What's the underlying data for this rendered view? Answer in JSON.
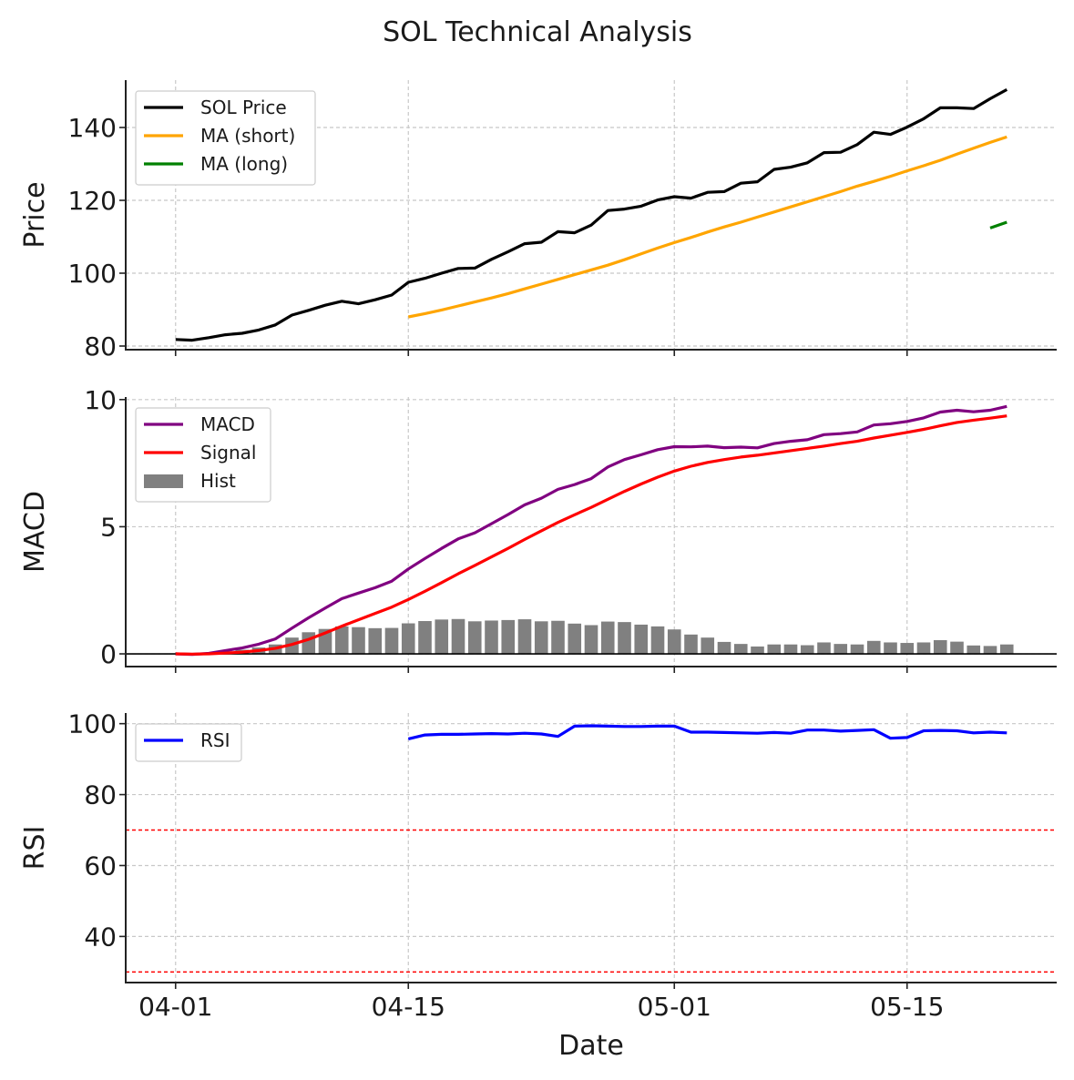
{
  "figure": {
    "title": "SOL Technical Analysis",
    "xlabel": "Date",
    "x_tick_labels": [
      "04-01",
      "04-15",
      "05-01",
      "05-15"
    ],
    "x_tick_days": [
      0,
      14,
      30,
      44
    ],
    "x_range": [
      -3,
      53
    ]
  },
  "colors": {
    "price": "#000000",
    "ma_short": "#FFA500",
    "ma_long": "#008000",
    "macd": "#800080",
    "signal": "#FF0000",
    "hist": "#808080",
    "rsi": "#0000FF",
    "threshold": "#FF0000"
  },
  "chart_data": [
    {
      "type": "line",
      "ylabel": "Price",
      "ylim": [
        79,
        153
      ],
      "yticks": [
        80,
        100,
        120,
        140
      ],
      "legend": [
        "SOL Price",
        "MA (short)",
        "MA (long)"
      ],
      "x_days": [
        0,
        1,
        2,
        3,
        4,
        5,
        6,
        7,
        8,
        9,
        10,
        11,
        12,
        13,
        14,
        15,
        16,
        17,
        18,
        19,
        20,
        21,
        22,
        23,
        24,
        25,
        26,
        27,
        28,
        29,
        30,
        31,
        32,
        33,
        34,
        35,
        36,
        37,
        38,
        39,
        40,
        41,
        42,
        43,
        44,
        45,
        46,
        47,
        48,
        49,
        50
      ],
      "series": [
        {
          "name": "SOL Price",
          "start_day": 0,
          "values": [
            81.8,
            81.6,
            82.3,
            83.1,
            83.5,
            84.4,
            85.8,
            88.5,
            89.8,
            91.2,
            92.3,
            91.6,
            92.7,
            94.0,
            97.5,
            98.6,
            100.0,
            101.3,
            101.4,
            103.8,
            105.9,
            108.1,
            108.5,
            111.4,
            111.1,
            113.2,
            117.2,
            117.6,
            118.4,
            120.1,
            121.0,
            120.6,
            122.2,
            122.4,
            124.7,
            125.1,
            128.5,
            129.1,
            130.3,
            133.1,
            133.2,
            135.3,
            138.7,
            138.1,
            140.1,
            142.4,
            145.4,
            145.4,
            145.2,
            147.9,
            150.4
          ]
        },
        {
          "name": "MA (short)",
          "start_day": 14,
          "values": [
            88.0,
            88.9,
            89.9,
            91.0,
            92.1,
            93.2,
            94.4,
            95.7,
            97.0,
            98.3,
            99.6,
            100.9,
            102.2,
            103.7,
            105.3,
            106.9,
            108.4,
            109.8,
            111.3,
            112.7,
            114.0,
            115.4,
            116.8,
            118.2,
            119.6,
            121.0,
            122.4,
            123.9,
            125.2,
            126.6,
            128.1,
            129.5,
            131.0,
            132.7,
            134.3,
            135.9,
            137.4
          ]
        },
        {
          "name": "MA (long)",
          "start_day": 49,
          "values": [
            112.4,
            114.0
          ]
        }
      ]
    },
    {
      "type": "line+bar",
      "ylabel": "MACD",
      "ylim": [
        -0.5,
        10.1
      ],
      "yticks": [
        0,
        5,
        10
      ],
      "legend": [
        "MACD",
        "Signal",
        "Hist"
      ],
      "x_days": [
        0,
        1,
        2,
        3,
        4,
        5,
        6,
        7,
        8,
        9,
        10,
        11,
        12,
        13,
        14,
        15,
        16,
        17,
        18,
        19,
        20,
        21,
        22,
        23,
        24,
        25,
        26,
        27,
        28,
        29,
        30,
        31,
        32,
        33,
        34,
        35,
        36,
        37,
        38,
        39,
        40,
        41,
        42,
        43,
        44,
        45,
        46,
        47,
        48,
        49,
        50
      ],
      "series": [
        {
          "name": "MACD",
          "values": [
            0.0,
            -0.02,
            0.02,
            0.13,
            0.23,
            0.38,
            0.59,
            1.01,
            1.42,
            1.8,
            2.17,
            2.39,
            2.6,
            2.86,
            3.34,
            3.75,
            4.15,
            4.52,
            4.76,
            5.12,
            5.48,
            5.86,
            6.12,
            6.47,
            6.66,
            6.89,
            7.35,
            7.64,
            7.83,
            8.03,
            8.15,
            8.14,
            8.17,
            8.11,
            8.13,
            8.1,
            8.27,
            8.36,
            8.42,
            8.62,
            8.66,
            8.73,
            9.0,
            9.05,
            9.14,
            9.28,
            9.51,
            9.58,
            9.52,
            9.58,
            9.73
          ]
        },
        {
          "name": "Signal",
          "values": [
            0.0,
            -0.01,
            0.0,
            0.03,
            0.07,
            0.13,
            0.22,
            0.37,
            0.57,
            0.82,
            1.09,
            1.34,
            1.59,
            1.84,
            2.14,
            2.46,
            2.8,
            3.15,
            3.48,
            3.81,
            4.15,
            4.5,
            4.84,
            5.17,
            5.47,
            5.76,
            6.08,
            6.39,
            6.68,
            6.95,
            7.19,
            7.38,
            7.53,
            7.64,
            7.74,
            7.81,
            7.9,
            7.99,
            8.08,
            8.17,
            8.27,
            8.36,
            8.49,
            8.6,
            8.71,
            8.83,
            8.97,
            9.1,
            9.19,
            9.27,
            9.36
          ]
        },
        {
          "name": "Hist",
          "values": [
            0.0,
            -0.01,
            0.02,
            0.1,
            0.16,
            0.25,
            0.37,
            0.64,
            0.85,
            0.98,
            1.08,
            1.05,
            1.01,
            1.02,
            1.2,
            1.29,
            1.35,
            1.37,
            1.28,
            1.31,
            1.33,
            1.36,
            1.28,
            1.3,
            1.19,
            1.13,
            1.27,
            1.25,
            1.15,
            1.08,
            0.96,
            0.76,
            0.64,
            0.47,
            0.39,
            0.29,
            0.37,
            0.37,
            0.34,
            0.45,
            0.39,
            0.37,
            0.51,
            0.45,
            0.43,
            0.45,
            0.54,
            0.48,
            0.33,
            0.31,
            0.37
          ]
        }
      ]
    },
    {
      "type": "line",
      "ylabel": "RSI",
      "ylim": [
        27,
        103
      ],
      "yticks": [
        40,
        60,
        80,
        100
      ],
      "legend": [
        "RSI"
      ],
      "thresholds": [
        70,
        30
      ],
      "x_days": [
        14,
        15,
        16,
        17,
        18,
        19,
        20,
        21,
        22,
        23,
        24,
        25,
        26,
        27,
        28,
        29,
        30,
        31,
        32,
        33,
        34,
        35,
        36,
        37,
        38,
        39,
        40,
        41,
        42,
        43,
        44,
        45,
        46,
        47,
        48,
        49,
        50
      ],
      "series": [
        {
          "name": "RSI",
          "values": [
            95.7,
            96.8,
            97.0,
            97.0,
            97.1,
            97.2,
            97.1,
            97.3,
            97.1,
            96.4,
            99.3,
            99.4,
            99.3,
            99.2,
            99.2,
            99.3,
            99.3,
            97.6,
            97.6,
            97.5,
            97.4,
            97.3,
            97.5,
            97.3,
            98.2,
            98.2,
            97.9,
            98.1,
            98.3,
            95.9,
            96.1,
            98.0,
            98.1,
            98.0,
            97.4,
            97.6,
            97.4
          ]
        }
      ]
    }
  ]
}
